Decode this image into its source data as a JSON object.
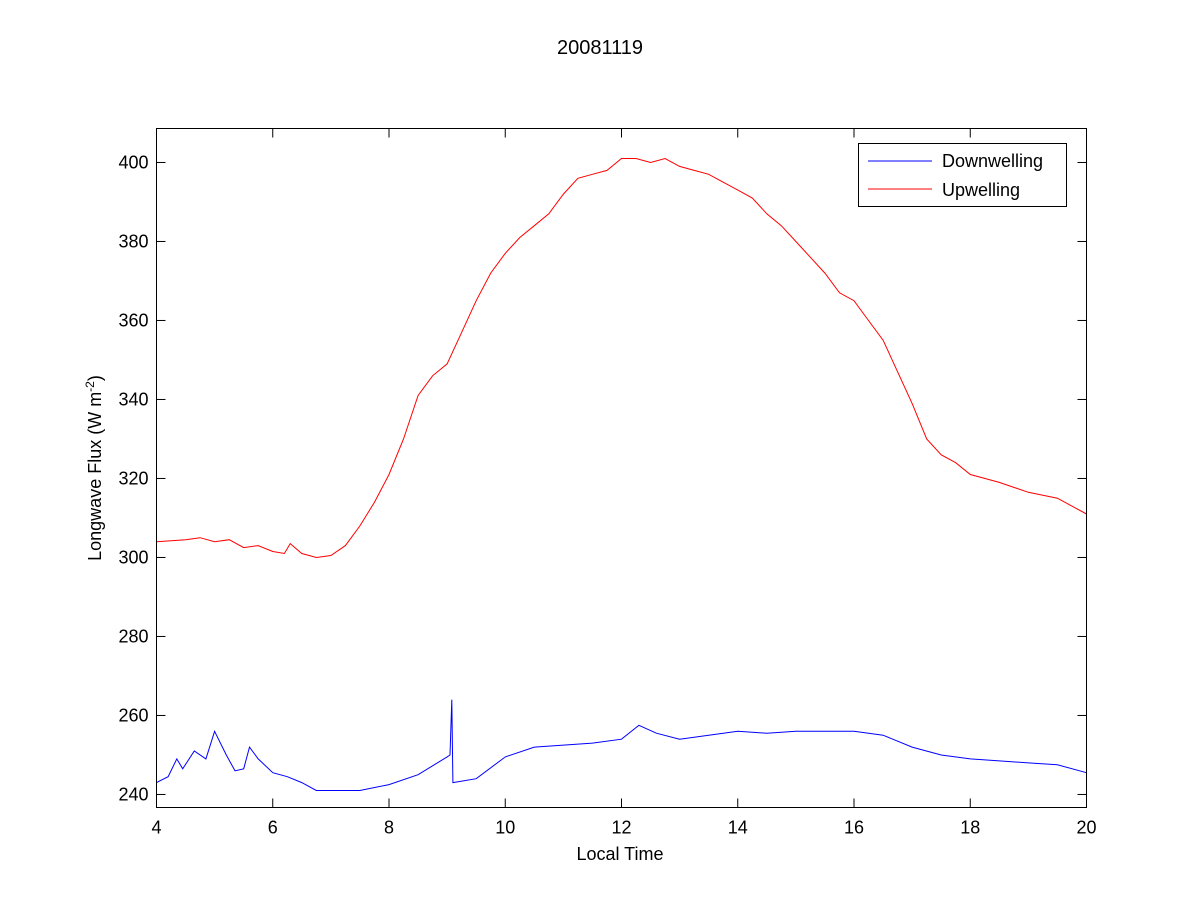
{
  "chart_data": {
    "type": "line",
    "title": "20081119",
    "xlabel": "Local Time",
    "ylabel": "Longwave Flux (W m",
    "ylabel_sup": "-2",
    "ylabel_end": ")",
    "xlim": [
      4,
      20
    ],
    "ylim": [
      236.7,
      408.6
    ],
    "xticks": [
      4,
      6,
      8,
      10,
      12,
      14,
      16,
      18,
      20
    ],
    "yticks": [
      240,
      260,
      280,
      300,
      320,
      340,
      360,
      380,
      400
    ],
    "grid": false,
    "legend_position": "top-right",
    "series": [
      {
        "name": "Downwelling",
        "color": "#0000ff",
        "x": [
          4,
          4.2,
          4.35,
          4.45,
          4.65,
          4.85,
          5.0,
          5.2,
          5.35,
          5.5,
          5.6,
          5.75,
          6,
          6.25,
          6.5,
          6.75,
          7,
          7.5,
          8,
          8.5,
          9,
          9.05,
          9.08,
          9.1,
          9.5,
          10,
          10.5,
          11,
          11.5,
          12,
          12.3,
          12.6,
          13,
          13.5,
          14,
          14.5,
          15,
          15.5,
          16,
          16.5,
          17,
          17.5,
          18,
          18.5,
          19,
          19.5,
          20
        ],
        "y": [
          243,
          244.5,
          249,
          246.5,
          251,
          249,
          256,
          250,
          246,
          246.5,
          252,
          249,
          245.5,
          244.5,
          243,
          241,
          241,
          241,
          242.5,
          245,
          249.5,
          250,
          264,
          243,
          244,
          249.5,
          252,
          252.5,
          253,
          254,
          257.5,
          255.5,
          254,
          255,
          256,
          255.5,
          256,
          256,
          256,
          255,
          252,
          250,
          249,
          248.5,
          248,
          247.5,
          245.5
        ]
      },
      {
        "name": "Upwelling",
        "color": "#ff0000",
        "x": [
          4,
          4.5,
          4.75,
          5,
          5.25,
          5.5,
          5.75,
          6,
          6.2,
          6.3,
          6.5,
          6.75,
          7,
          7.25,
          7.5,
          7.75,
          8,
          8.25,
          8.5,
          8.75,
          9,
          9.25,
          9.5,
          9.75,
          10,
          10.25,
          10.5,
          10.75,
          11,
          11.25,
          11.5,
          11.75,
          12,
          12.25,
          12.5,
          12.75,
          13,
          13.25,
          13.5,
          13.75,
          14,
          14.25,
          14.5,
          14.75,
          15,
          15.25,
          15.5,
          15.75,
          16,
          16.25,
          16.5,
          16.75,
          17,
          17.25,
          17.5,
          17.75,
          18,
          18.5,
          19,
          19.5,
          20
        ],
        "y": [
          304,
          304.5,
          305,
          304,
          304.5,
          302.5,
          303,
          301.5,
          301,
          303.5,
          301,
          300,
          300.5,
          303,
          308,
          314,
          321,
          330,
          341,
          346,
          349,
          357,
          365,
          372,
          377,
          381,
          384,
          387,
          392,
          396,
          397,
          398,
          401,
          401,
          400,
          401,
          399,
          398,
          397,
          395,
          393,
          391,
          387,
          384,
          380,
          376,
          372,
          367,
          365,
          360,
          355,
          347,
          339,
          330,
          326,
          324,
          321,
          319,
          316.5,
          315,
          311
        ]
      }
    ]
  }
}
